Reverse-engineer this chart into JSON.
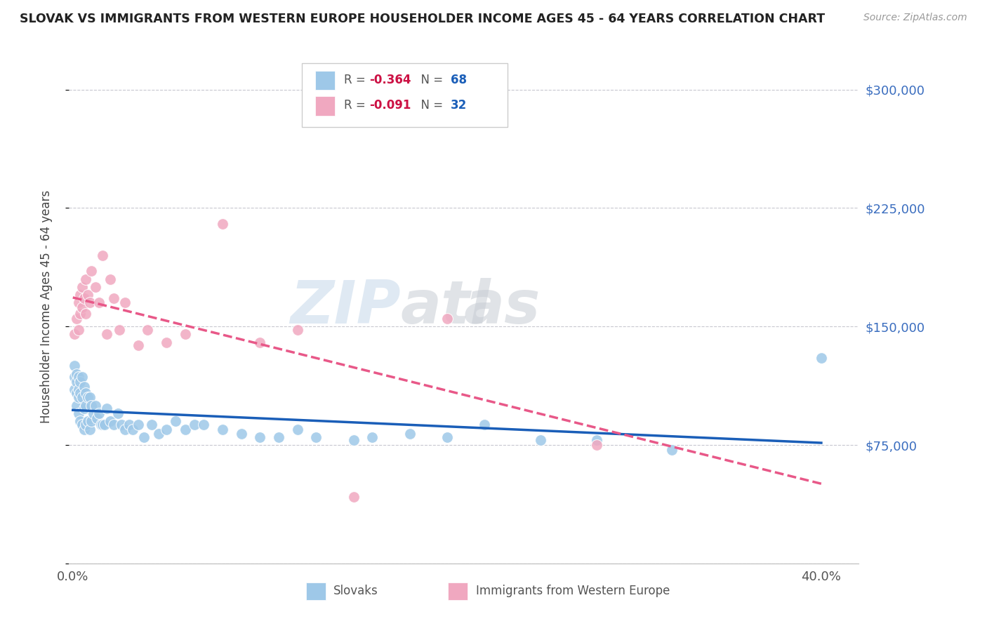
{
  "title": "SLOVAK VS IMMIGRANTS FROM WESTERN EUROPE HOUSEHOLDER INCOME AGES 45 - 64 YEARS CORRELATION CHART",
  "source": "Source: ZipAtlas.com",
  "ylabel": "Householder Income Ages 45 - 64 years",
  "ylim": [
    0,
    325000
  ],
  "xlim": [
    -0.002,
    0.42
  ],
  "y_ticks": [
    0,
    75000,
    150000,
    225000,
    300000
  ],
  "y_tick_labels": [
    "",
    "$75,000",
    "$150,000",
    "$225,000",
    "$300,000"
  ],
  "background_color": "#ffffff",
  "grid_color": "#c8c8d0",
  "watermark_zip": "ZIP",
  "watermark_atl": "atl",
  "watermark_as": "as",
  "slovak_color": "#9ec8e8",
  "immigrant_color": "#f0a8c0",
  "slovak_line_color": "#1a5eb8",
  "immigrant_line_color": "#e85888",
  "slovak_x": [
    0.001,
    0.001,
    0.001,
    0.002,
    0.002,
    0.002,
    0.002,
    0.003,
    0.003,
    0.003,
    0.003,
    0.004,
    0.004,
    0.004,
    0.005,
    0.005,
    0.005,
    0.006,
    0.006,
    0.006,
    0.007,
    0.007,
    0.007,
    0.008,
    0.008,
    0.009,
    0.009,
    0.01,
    0.01,
    0.011,
    0.012,
    0.013,
    0.014,
    0.015,
    0.016,
    0.017,
    0.018,
    0.02,
    0.022,
    0.024,
    0.026,
    0.028,
    0.03,
    0.032,
    0.035,
    0.038,
    0.042,
    0.046,
    0.05,
    0.055,
    0.06,
    0.065,
    0.07,
    0.08,
    0.09,
    0.1,
    0.11,
    0.12,
    0.13,
    0.15,
    0.16,
    0.18,
    0.2,
    0.22,
    0.25,
    0.28,
    0.32,
    0.4
  ],
  "slovak_y": [
    125000,
    118000,
    110000,
    120000,
    115000,
    108000,
    100000,
    118000,
    110000,
    105000,
    95000,
    115000,
    108000,
    90000,
    118000,
    105000,
    88000,
    112000,
    98000,
    85000,
    108000,
    100000,
    88000,
    105000,
    90000,
    105000,
    85000,
    100000,
    90000,
    95000,
    100000,
    92000,
    95000,
    88000,
    88000,
    88000,
    98000,
    90000,
    88000,
    95000,
    88000,
    85000,
    88000,
    85000,
    88000,
    80000,
    88000,
    82000,
    85000,
    90000,
    85000,
    88000,
    88000,
    85000,
    82000,
    80000,
    80000,
    85000,
    80000,
    78000,
    80000,
    82000,
    80000,
    88000,
    78000,
    78000,
    72000,
    130000
  ],
  "immigrant_x": [
    0.001,
    0.002,
    0.003,
    0.003,
    0.004,
    0.004,
    0.005,
    0.005,
    0.006,
    0.007,
    0.007,
    0.008,
    0.009,
    0.01,
    0.012,
    0.014,
    0.016,
    0.018,
    0.02,
    0.022,
    0.025,
    0.028,
    0.035,
    0.04,
    0.05,
    0.06,
    0.08,
    0.1,
    0.12,
    0.15,
    0.2,
    0.28
  ],
  "immigrant_y": [
    145000,
    155000,
    165000,
    148000,
    170000,
    158000,
    162000,
    175000,
    168000,
    180000,
    158000,
    170000,
    165000,
    185000,
    175000,
    165000,
    195000,
    145000,
    180000,
    168000,
    148000,
    165000,
    138000,
    148000,
    140000,
    145000,
    215000,
    140000,
    148000,
    42000,
    155000,
    75000
  ]
}
